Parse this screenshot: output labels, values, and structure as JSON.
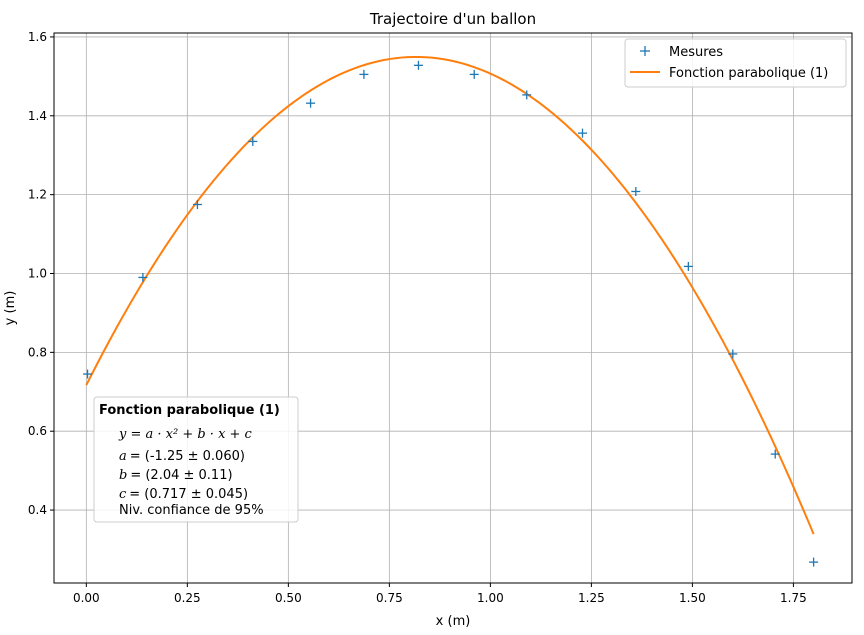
{
  "chart_data": {
    "type": "scatter",
    "title": "Trajectoire d'un ballon",
    "xlabel": "x (m)",
    "ylabel": "y (m)",
    "xlim": [
      -0.08,
      1.895
    ],
    "ylim": [
      0.215,
      1.61
    ],
    "xticks": [
      0.0,
      0.25,
      0.5,
      0.75,
      1.0,
      1.25,
      1.5,
      1.75
    ],
    "xtick_labels": [
      "0.00",
      "0.25",
      "0.50",
      "0.75",
      "1.00",
      "1.25",
      "1.50",
      "1.75"
    ],
    "yticks": [
      0.4,
      0.6,
      0.8,
      1.0,
      1.2,
      1.4,
      1.6
    ],
    "ytick_labels": [
      "0.4",
      "0.6",
      "0.8",
      "1.0",
      "1.2",
      "1.4",
      "1.6"
    ],
    "grid": true,
    "legend_position": "top-right",
    "series": [
      {
        "name": "Mesures",
        "kind": "points",
        "marker": "+",
        "color": "#1f77b4",
        "x": [
          0.003,
          0.14,
          0.275,
          0.412,
          0.555,
          0.687,
          0.822,
          0.96,
          1.09,
          1.228,
          1.36,
          1.49,
          1.6,
          1.705,
          1.8
        ],
        "y": [
          0.745,
          0.99,
          1.175,
          1.335,
          1.432,
          1.505,
          1.528,
          1.505,
          1.453,
          1.356,
          1.208,
          1.018,
          0.796,
          0.542,
          0.268
        ]
      },
      {
        "name": "Fonction parabolique (1)",
        "kind": "curve",
        "color": "#ff7f0e",
        "model": {
          "a": -1.25,
          "b": 2.04,
          "c": 0.717
        },
        "x_range": [
          0.0,
          1.8
        ]
      }
    ],
    "annotation": {
      "title": "Fonction parabolique (1)",
      "equation": "y = a · x² + b · x + c",
      "lines": [
        {
          "var": "a",
          "text": "= (-1.25  ± 0.060)"
        },
        {
          "var": "b",
          "text": "= (2.04  ± 0.11)"
        },
        {
          "var": "c",
          "text": "= (0.717  ± 0.045)"
        }
      ],
      "confidence": "Niv. confiance de 95%"
    }
  }
}
